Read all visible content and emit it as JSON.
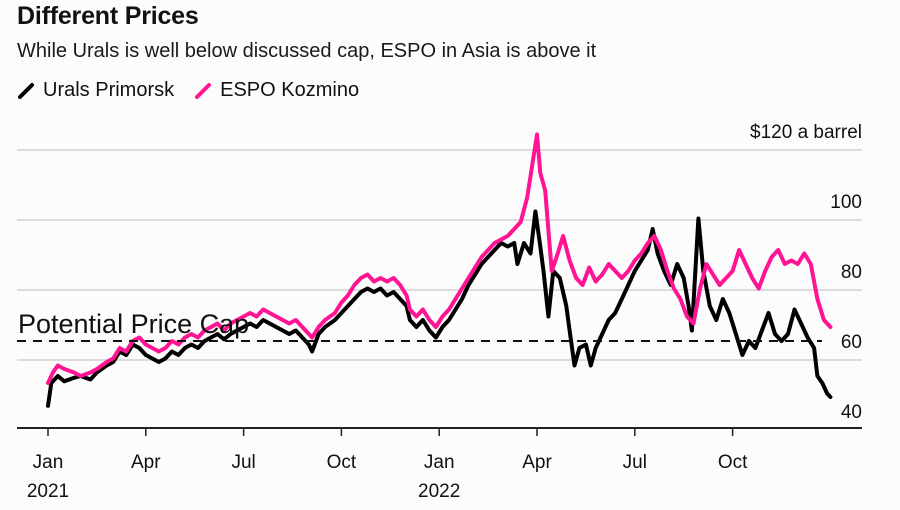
{
  "title": "Different Prices",
  "subtitle": "While Urals is well below discussed cap, ESPO in Asia is above it",
  "legend": [
    {
      "label": "Urals Primorsk",
      "color": "#000000"
    },
    {
      "label": "ESPO Kozmino",
      "color": "#ff1493"
    }
  ],
  "chart_data": {
    "type": "line",
    "title": "Different Prices",
    "subtitle": "While Urals is well below discussed cap, ESPO in Asia is above it",
    "xlabel": "",
    "ylabel": "$ a barrel",
    "y_unit_label": "$120 a barrel",
    "ylim": [
      40,
      120
    ],
    "yticks": [
      40,
      60,
      80,
      100,
      120
    ],
    "ytick_labels": [
      "40",
      "60",
      "80",
      "100",
      "$120 a barrel"
    ],
    "xticks": [
      {
        "month": 0,
        "label": "Jan",
        "year_label": "2021"
      },
      {
        "month": 3,
        "label": "Apr",
        "year_label": ""
      },
      {
        "month": 6,
        "label": "Jul",
        "year_label": ""
      },
      {
        "month": 9,
        "label": "Oct",
        "year_label": ""
      },
      {
        "month": 12,
        "label": "Jan",
        "year_label": "2022"
      },
      {
        "month": 15,
        "label": "Apr",
        "year_label": ""
      },
      {
        "month": 18,
        "label": "Jul",
        "year_label": ""
      },
      {
        "month": 21,
        "label": "Oct",
        "year_label": ""
      }
    ],
    "x_unit": "months since Jan 2021",
    "grid": true,
    "legend_position": "top-left",
    "reference_line": {
      "value": 60,
      "label": "Potential Price Cap",
      "style": "dashed"
    },
    "series": [
      {
        "name": "Urals Primorsk",
        "color": "#000000",
        "points": [
          [
            0.0,
            41.5
          ],
          [
            0.1,
            48
          ],
          [
            0.3,
            50
          ],
          [
            0.5,
            48.5
          ],
          [
            0.8,
            49.5
          ],
          [
            1.0,
            50
          ],
          [
            1.3,
            49
          ],
          [
            1.5,
            51
          ],
          [
            1.8,
            53
          ],
          [
            2.0,
            54
          ],
          [
            2.2,
            57
          ],
          [
            2.4,
            56
          ],
          [
            2.6,
            59
          ],
          [
            2.8,
            58
          ],
          [
            3.0,
            56
          ],
          [
            3.2,
            55
          ],
          [
            3.4,
            54
          ],
          [
            3.6,
            55
          ],
          [
            3.8,
            57
          ],
          [
            4.0,
            56
          ],
          [
            4.2,
            58
          ],
          [
            4.4,
            59
          ],
          [
            4.6,
            58
          ],
          [
            4.8,
            60
          ],
          [
            5.0,
            61
          ],
          [
            5.2,
            62
          ],
          [
            5.4,
            60.5
          ],
          [
            5.6,
            62
          ],
          [
            5.8,
            63
          ],
          [
            6.0,
            64
          ],
          [
            6.2,
            65
          ],
          [
            6.4,
            64
          ],
          [
            6.6,
            66
          ],
          [
            6.8,
            65
          ],
          [
            7.0,
            64
          ],
          [
            7.2,
            63
          ],
          [
            7.4,
            62
          ],
          [
            7.6,
            63
          ],
          [
            7.8,
            61
          ],
          [
            8.0,
            59
          ],
          [
            8.1,
            57
          ],
          [
            8.3,
            62
          ],
          [
            8.5,
            64
          ],
          [
            8.8,
            66
          ],
          [
            9.0,
            68
          ],
          [
            9.2,
            70
          ],
          [
            9.4,
            72
          ],
          [
            9.6,
            74
          ],
          [
            9.8,
            75
          ],
          [
            10.0,
            74
          ],
          [
            10.2,
            75
          ],
          [
            10.4,
            73
          ],
          [
            10.6,
            74
          ],
          [
            10.8,
            72
          ],
          [
            11.0,
            70
          ],
          [
            11.1,
            66
          ],
          [
            11.3,
            64
          ],
          [
            11.5,
            66
          ],
          [
            11.7,
            63
          ],
          [
            11.9,
            61
          ],
          [
            12.1,
            64
          ],
          [
            12.3,
            66
          ],
          [
            12.5,
            69
          ],
          [
            12.7,
            72
          ],
          [
            12.9,
            76
          ],
          [
            13.1,
            79
          ],
          [
            13.3,
            82
          ],
          [
            13.5,
            84
          ],
          [
            13.7,
            86
          ],
          [
            13.9,
            88
          ],
          [
            14.1,
            87
          ],
          [
            14.3,
            88
          ],
          [
            14.4,
            82
          ],
          [
            14.6,
            88
          ],
          [
            14.8,
            85
          ],
          [
            14.95,
            97
          ],
          [
            15.1,
            87
          ],
          [
            15.2,
            80
          ],
          [
            15.35,
            67
          ],
          [
            15.5,
            80
          ],
          [
            15.7,
            78
          ],
          [
            15.9,
            70
          ],
          [
            16.0,
            63
          ],
          [
            16.15,
            53
          ],
          [
            16.3,
            58
          ],
          [
            16.5,
            59
          ],
          [
            16.65,
            53
          ],
          [
            16.8,
            58
          ],
          [
            17.0,
            62
          ],
          [
            17.2,
            66
          ],
          [
            17.4,
            68
          ],
          [
            17.6,
            72
          ],
          [
            17.8,
            76
          ],
          [
            18.0,
            80
          ],
          [
            18.2,
            83
          ],
          [
            18.4,
            86
          ],
          [
            18.55,
            92
          ],
          [
            18.7,
            85
          ],
          [
            18.9,
            80
          ],
          [
            19.1,
            76
          ],
          [
            19.3,
            82
          ],
          [
            19.5,
            78
          ],
          [
            19.65,
            70
          ],
          [
            19.75,
            63
          ],
          [
            19.95,
            95
          ],
          [
            20.1,
            80
          ],
          [
            20.3,
            70
          ],
          [
            20.5,
            66
          ],
          [
            20.7,
            72
          ],
          [
            20.9,
            68
          ],
          [
            21.1,
            62
          ],
          [
            21.3,
            56
          ],
          [
            21.5,
            60
          ],
          [
            21.7,
            58
          ],
          [
            21.9,
            63
          ],
          [
            22.1,
            68
          ],
          [
            22.3,
            62
          ],
          [
            22.5,
            60
          ],
          [
            22.7,
            62
          ],
          [
            22.9,
            69
          ],
          [
            23.1,
            65
          ],
          [
            23.3,
            61
          ],
          [
            23.5,
            58
          ],
          [
            23.6,
            50
          ],
          [
            23.75,
            48
          ],
          [
            23.9,
            45
          ],
          [
            24.0,
            44
          ]
        ]
      },
      {
        "name": "ESPO Kozmino",
        "color": "#ff1493",
        "points": [
          [
            0.0,
            48
          ],
          [
            0.15,
            51
          ],
          [
            0.3,
            53
          ],
          [
            0.5,
            52
          ],
          [
            0.8,
            51
          ],
          [
            1.0,
            50
          ],
          [
            1.3,
            51
          ],
          [
            1.5,
            52
          ],
          [
            1.8,
            54
          ],
          [
            2.0,
            55
          ],
          [
            2.2,
            58
          ],
          [
            2.4,
            57
          ],
          [
            2.6,
            60
          ],
          [
            2.8,
            61
          ],
          [
            3.0,
            59
          ],
          [
            3.2,
            58
          ],
          [
            3.4,
            57
          ],
          [
            3.6,
            58
          ],
          [
            3.8,
            60
          ],
          [
            4.0,
            59
          ],
          [
            4.2,
            61
          ],
          [
            4.4,
            62
          ],
          [
            4.6,
            61
          ],
          [
            4.8,
            63
          ],
          [
            5.0,
            64
          ],
          [
            5.2,
            65
          ],
          [
            5.4,
            63
          ],
          [
            5.6,
            65
          ],
          [
            5.8,
            66
          ],
          [
            6.0,
            67
          ],
          [
            6.2,
            68
          ],
          [
            6.4,
            67
          ],
          [
            6.6,
            69
          ],
          [
            6.8,
            68
          ],
          [
            7.0,
            67
          ],
          [
            7.2,
            66
          ],
          [
            7.4,
            65
          ],
          [
            7.6,
            66
          ],
          [
            7.8,
            64
          ],
          [
            8.0,
            62
          ],
          [
            8.1,
            61
          ],
          [
            8.3,
            64
          ],
          [
            8.5,
            66
          ],
          [
            8.8,
            68
          ],
          [
            9.0,
            71
          ],
          [
            9.2,
            73
          ],
          [
            9.4,
            76
          ],
          [
            9.6,
            78
          ],
          [
            9.8,
            79
          ],
          [
            10.0,
            77
          ],
          [
            10.2,
            78
          ],
          [
            10.4,
            77
          ],
          [
            10.6,
            78
          ],
          [
            10.8,
            76
          ],
          [
            11.0,
            73
          ],
          [
            11.1,
            69
          ],
          [
            11.3,
            67
          ],
          [
            11.5,
            69
          ],
          [
            11.7,
            66
          ],
          [
            11.9,
            64
          ],
          [
            12.1,
            67
          ],
          [
            12.3,
            69
          ],
          [
            12.5,
            72
          ],
          [
            12.7,
            75
          ],
          [
            12.9,
            78
          ],
          [
            13.1,
            81
          ],
          [
            13.3,
            84
          ],
          [
            13.5,
            86
          ],
          [
            13.7,
            88
          ],
          [
            13.9,
            89
          ],
          [
            14.1,
            90
          ],
          [
            14.3,
            92
          ],
          [
            14.5,
            94
          ],
          [
            14.7,
            101
          ],
          [
            14.85,
            110
          ],
          [
            15.0,
            119
          ],
          [
            15.1,
            108
          ],
          [
            15.25,
            103
          ],
          [
            15.45,
            80
          ],
          [
            15.6,
            84
          ],
          [
            15.8,
            90
          ],
          [
            16.0,
            83
          ],
          [
            16.2,
            78
          ],
          [
            16.4,
            76
          ],
          [
            16.6,
            81
          ],
          [
            16.8,
            77
          ],
          [
            17.0,
            79
          ],
          [
            17.2,
            82
          ],
          [
            17.4,
            80
          ],
          [
            17.6,
            78
          ],
          [
            17.8,
            80
          ],
          [
            18.0,
            83
          ],
          [
            18.2,
            85
          ],
          [
            18.4,
            88
          ],
          [
            18.6,
            90
          ],
          [
            18.8,
            86
          ],
          [
            19.0,
            80
          ],
          [
            19.2,
            75
          ],
          [
            19.4,
            72
          ],
          [
            19.6,
            67
          ],
          [
            19.8,
            65
          ],
          [
            20.0,
            75
          ],
          [
            20.2,
            82
          ],
          [
            20.4,
            79
          ],
          [
            20.6,
            76
          ],
          [
            20.8,
            78
          ],
          [
            21.0,
            80
          ],
          [
            21.2,
            86
          ],
          [
            21.4,
            82
          ],
          [
            21.6,
            78
          ],
          [
            21.8,
            75
          ],
          [
            22.0,
            80
          ],
          [
            22.2,
            84
          ],
          [
            22.4,
            86
          ],
          [
            22.6,
            82
          ],
          [
            22.8,
            83
          ],
          [
            23.0,
            82
          ],
          [
            23.2,
            85
          ],
          [
            23.4,
            82
          ],
          [
            23.6,
            72
          ],
          [
            23.8,
            66
          ],
          [
            24.0,
            64
          ]
        ]
      }
    ]
  }
}
